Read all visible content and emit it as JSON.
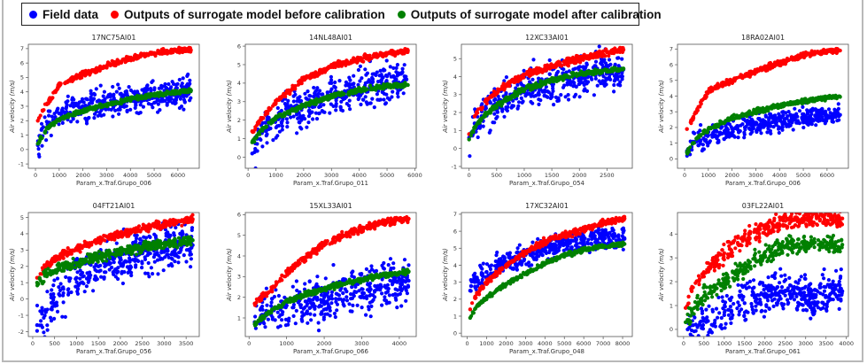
{
  "legend": {
    "items": [
      {
        "label": "Field data",
        "color": "#0000ff"
      },
      {
        "label": "Outputs of surrogate model before calibration",
        "color": "#ff0000"
      },
      {
        "label": "Outputs of surrogate model after calibration",
        "color": "#008000"
      }
    ]
  },
  "chart_data": [
    {
      "type": "scatter",
      "title": "17NC75AI01",
      "xlabel": "Param_x.Traf.Grupo_006",
      "ylabel": "Air velocity (m/s)",
      "xlim": [
        -300,
        6900
      ],
      "ylim": [
        -1.3,
        7.3
      ],
      "xticks": [
        0,
        1000,
        2000,
        3000,
        4000,
        5000,
        6000
      ],
      "yticks": [
        -1,
        0,
        1,
        2,
        3,
        4,
        5,
        6,
        7
      ],
      "series": [
        {
          "name": "Field data",
          "x": [
            100,
            500,
            1000,
            2000,
            3000,
            4000,
            5000,
            6000,
            6550
          ],
          "y": [
            0.3,
            1.9,
            2.5,
            2.9,
            3.2,
            3.5,
            3.8,
            4.0,
            4.1
          ],
          "spread": 0.55
        },
        {
          "name": "Outputs of surrogate model before calibration",
          "x": [
            100,
            500,
            1000,
            2000,
            3000,
            4000,
            5000,
            6000,
            6550
          ],
          "y": [
            2.0,
            3.2,
            4.4,
            5.2,
            5.8,
            6.3,
            6.7,
            6.9,
            6.9
          ],
          "spread": 0.15
        },
        {
          "name": "Outputs of surrogate model after calibration",
          "x": [
            100,
            500,
            1000,
            2000,
            3000,
            4000,
            5000,
            6000,
            6550
          ],
          "y": [
            0.4,
            1.5,
            2.1,
            2.7,
            3.1,
            3.5,
            3.8,
            4.0,
            4.1
          ],
          "spread": 0.12
        }
      ]
    },
    {
      "type": "scatter",
      "title": "14NL48AI01",
      "xlabel": "Param_x.Traf.Grupo_011",
      "ylabel": "Air velocity (m/s)",
      "xlim": [
        -100,
        6050
      ],
      "ylim": [
        -0.6,
        6.1
      ],
      "xticks": [
        0,
        1000,
        2000,
        3000,
        4000,
        5000,
        6000
      ],
      "yticks": [
        0,
        1,
        2,
        3,
        4,
        5,
        6
      ],
      "series": [
        {
          "name": "Field data",
          "x": [
            150,
            500,
            1000,
            2000,
            3000,
            4000,
            5000,
            5700
          ],
          "y": [
            0.2,
            1.3,
            2.0,
            2.8,
            3.3,
            3.7,
            4.0,
            4.2
          ],
          "spread": 0.55
        },
        {
          "name": "Outputs of surrogate model before calibration",
          "x": [
            150,
            500,
            1000,
            2000,
            3000,
            4000,
            5000,
            5750
          ],
          "y": [
            1.4,
            2.1,
            3.0,
            4.2,
            4.9,
            5.3,
            5.6,
            5.75
          ],
          "spread": 0.12
        },
        {
          "name": "Outputs of surrogate model after calibration",
          "x": [
            150,
            500,
            1000,
            2000,
            3000,
            4000,
            5000,
            5750
          ],
          "y": [
            0.8,
            1.5,
            2.1,
            2.8,
            3.3,
            3.6,
            3.85,
            3.9
          ],
          "spread": 0.1
        }
      ]
    },
    {
      "type": "scatter",
      "title": "12XC33AI01",
      "xlabel": "Param_x.Traf.Grupo_054",
      "ylabel": "Air velocity (m/s)",
      "xlim": [
        -140,
        2960
      ],
      "ylim": [
        -1.1,
        5.8
      ],
      "xticks": [
        0,
        500,
        1000,
        1500,
        2000,
        2500
      ],
      "yticks": [
        -1,
        0,
        1,
        2,
        3,
        4,
        5
      ],
      "series": [
        {
          "name": "Field data",
          "x": [
            0,
            100,
            300,
            600,
            1000,
            1500,
            2000,
            2500,
            2800
          ],
          "y": [
            0.6,
            1.4,
            2.0,
            2.5,
            3.2,
            3.6,
            4.0,
            4.3,
            4.4
          ],
          "spread": 0.6
        },
        {
          "name": "Outputs of surrogate model before calibration",
          "x": [
            0,
            100,
            300,
            600,
            1000,
            1500,
            2000,
            2500,
            2800
          ],
          "y": [
            0.8,
            1.8,
            2.6,
            3.4,
            4.1,
            4.6,
            5.0,
            5.35,
            5.5
          ],
          "spread": 0.15
        },
        {
          "name": "Outputs of surrogate model after calibration",
          "x": [
            0,
            100,
            300,
            600,
            1000,
            1500,
            2000,
            2500,
            2800
          ],
          "y": [
            0.5,
            1.2,
            1.9,
            2.6,
            3.3,
            3.8,
            4.15,
            4.35,
            4.45
          ],
          "spread": 0.12
        }
      ]
    },
    {
      "type": "scatter",
      "title": "18RA02AI01",
      "xlabel": "Param_x.Traf.Grupo_006",
      "ylabel": "Air velocity (m/s)",
      "xlim": [
        -300,
        6900
      ],
      "ylim": [
        -0.6,
        7.3
      ],
      "xticks": [
        0,
        1000,
        2000,
        3000,
        4000,
        5000,
        6000
      ],
      "yticks": [
        0,
        1,
        2,
        3,
        4,
        5,
        6,
        7
      ],
      "series": [
        {
          "name": "Field data",
          "x": [
            100,
            500,
            1000,
            2000,
            3000,
            4000,
            5000,
            6000,
            6550
          ],
          "y": [
            0.5,
            1.1,
            1.5,
            1.9,
            2.2,
            2.45,
            2.6,
            2.7,
            2.8
          ],
          "spread": 0.35
        },
        {
          "name": "Outputs of surrogate model before calibration",
          "x": [
            100,
            500,
            1000,
            2000,
            3000,
            4000,
            5000,
            6000,
            6550
          ],
          "y": [
            1.9,
            3.0,
            4.3,
            5.0,
            5.6,
            6.1,
            6.6,
            6.85,
            6.9
          ],
          "spread": 0.15
        },
        {
          "name": "Outputs of surrogate model after calibration",
          "x": [
            100,
            500,
            1000,
            2000,
            3000,
            4000,
            5000,
            6000,
            6550
          ],
          "y": [
            0.4,
            1.3,
            1.9,
            2.6,
            3.0,
            3.4,
            3.7,
            3.9,
            3.95
          ],
          "spread": 0.12
        }
      ]
    },
    {
      "type": "scatter",
      "title": "04FT21AI01",
      "xlabel": "Param_x.Traf.Grupo_056",
      "ylabel": "Air velocity (m/s)",
      "xlim": [
        -100,
        3800
      ],
      "ylim": [
        -2.3,
        5.3
      ],
      "xticks": [
        0,
        500,
        1000,
        1500,
        2000,
        2500,
        3000,
        3500
      ],
      "yticks": [
        -2,
        -1,
        0,
        1,
        2,
        3,
        4,
        5
      ],
      "series": [
        {
          "name": "Field data",
          "x": [
            100,
            300,
            600,
            1000,
            1500,
            2000,
            2500,
            3000,
            3650
          ],
          "y": [
            -1.6,
            -0.8,
            0.3,
            1.3,
            2.0,
            2.4,
            2.8,
            3.1,
            3.3
          ],
          "spread": 0.75
        },
        {
          "name": "Outputs of surrogate model before calibration",
          "x": [
            100,
            300,
            600,
            1000,
            1500,
            2000,
            2500,
            3000,
            3650
          ],
          "y": [
            1.3,
            2.0,
            2.6,
            3.1,
            3.6,
            4.0,
            4.3,
            4.6,
            4.9
          ],
          "spread": 0.2
        },
        {
          "name": "Outputs of surrogate model after calibration",
          "x": [
            100,
            300,
            600,
            1000,
            1500,
            2000,
            2500,
            3000,
            3650
          ],
          "y": [
            1.0,
            1.5,
            1.9,
            2.2,
            2.6,
            2.9,
            3.2,
            3.4,
            3.6
          ],
          "spread": 0.25
        }
      ]
    },
    {
      "type": "scatter",
      "title": "15XL33AI01",
      "xlabel": "Param_x.Traf.Grupo_066",
      "ylabel": "Air velocity (m/s)",
      "xlim": [
        -100,
        4450
      ],
      "ylim": [
        0.1,
        6.1
      ],
      "xticks": [
        0,
        1000,
        2000,
        3000,
        4000
      ],
      "yticks": [
        1,
        2,
        3,
        4,
        5,
        6
      ],
      "series": [
        {
          "name": "Field data",
          "x": [
            150,
            500,
            1000,
            1500,
            2000,
            2500,
            3000,
            3500,
            4250
          ],
          "y": [
            0.8,
            1.3,
            1.6,
            1.8,
            2.0,
            2.2,
            2.4,
            2.6,
            2.8
          ],
          "spread": 0.6
        },
        {
          "name": "Outputs of surrogate model before calibration",
          "x": [
            150,
            500,
            1000,
            1500,
            2000,
            2500,
            3000,
            3500,
            4250
          ],
          "y": [
            1.7,
            2.2,
            3.2,
            3.9,
            4.6,
            5.0,
            5.3,
            5.6,
            5.8
          ],
          "spread": 0.15
        },
        {
          "name": "Outputs of surrogate model after calibration",
          "x": [
            150,
            500,
            1000,
            1500,
            2000,
            2500,
            3000,
            3500,
            4250
          ],
          "y": [
            0.7,
            1.2,
            1.8,
            2.15,
            2.4,
            2.65,
            2.85,
            3.05,
            3.25
          ],
          "spread": 0.1
        }
      ]
    },
    {
      "type": "scatter",
      "title": "17XC32AI01",
      "xlabel": "Param_x.Traf.Grupo_048",
      "ylabel": "Air velocity (m/s)",
      "xlim": [
        -300,
        8500
      ],
      "ylim": [
        -0.2,
        7.1
      ],
      "xticks": [
        0,
        1000,
        2000,
        3000,
        4000,
        5000,
        6000,
        7000,
        8000
      ],
      "yticks": [
        0,
        1,
        2,
        3,
        4,
        5,
        6,
        7
      ],
      "series": [
        {
          "name": "Field data",
          "x": [
            150,
            500,
            1000,
            2000,
            3000,
            4000,
            5000,
            6000,
            7000,
            8100
          ],
          "y": [
            2.5,
            3.2,
            3.6,
            4.2,
            4.6,
            5.0,
            5.2,
            5.4,
            5.5,
            5.55
          ],
          "spread": 0.35
        },
        {
          "name": "Outputs of surrogate model before calibration",
          "x": [
            150,
            500,
            1000,
            2000,
            3000,
            4000,
            5000,
            6000,
            7000,
            8100
          ],
          "y": [
            1.4,
            2.3,
            3.0,
            4.0,
            4.8,
            5.4,
            5.8,
            6.1,
            6.5,
            6.75
          ],
          "spread": 0.15
        },
        {
          "name": "Outputs of surrogate model after calibration",
          "x": [
            150,
            500,
            1000,
            2000,
            3000,
            4000,
            5000,
            6000,
            7000,
            8100
          ],
          "y": [
            0.9,
            1.6,
            2.1,
            2.9,
            3.5,
            4.1,
            4.6,
            4.9,
            5.15,
            5.25
          ],
          "spread": 0.1
        }
      ]
    },
    {
      "type": "scatter",
      "title": "03FL22AI01",
      "xlabel": "Param_x.Traf.Grupo_061",
      "ylabel": "Air velocity (m/s)",
      "xlim": [
        -150,
        4050
      ],
      "ylim": [
        -0.3,
        4.9
      ],
      "xticks": [
        0,
        500,
        1000,
        1500,
        2000,
        2500,
        3000,
        3500,
        4000
      ],
      "yticks": [
        0,
        1,
        2,
        3,
        4
      ],
      "series": [
        {
          "name": "Field data",
          "x": [
            100,
            300,
            600,
            1000,
            1500,
            2000,
            2500,
            3000,
            3900
          ],
          "y": [
            0.0,
            0.2,
            0.35,
            0.6,
            1.1,
            1.5,
            1.6,
            1.4,
            1.6
          ],
          "spread": 0.45
        },
        {
          "name": "Outputs of surrogate model before calibration",
          "x": [
            50,
            200,
            500,
            1000,
            1500,
            2000,
            2500,
            3000,
            3900
          ],
          "y": [
            0.9,
            1.6,
            2.4,
            3.2,
            3.8,
            4.2,
            4.55,
            4.65,
            4.65
          ],
          "spread": 0.3
        },
        {
          "name": "Outputs of surrogate model after calibration",
          "x": [
            50,
            200,
            500,
            1000,
            1500,
            2000,
            2500,
            3000,
            3900
          ],
          "y": [
            0.3,
            0.8,
            1.4,
            2.0,
            2.6,
            3.1,
            3.5,
            3.55,
            3.55
          ],
          "spread": 0.3
        }
      ]
    }
  ]
}
